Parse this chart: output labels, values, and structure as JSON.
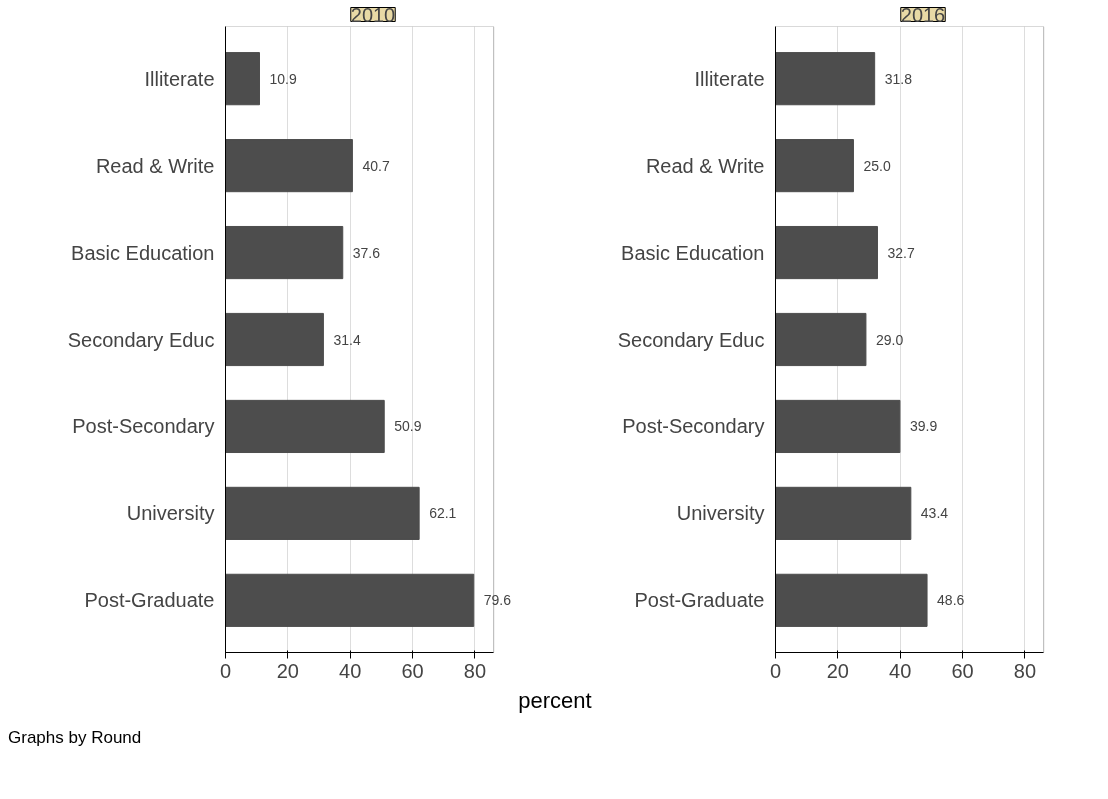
{
  "chart_data": [
    {
      "type": "bar",
      "title": "2010",
      "orientation": "horizontal",
      "categories": [
        "Illiterate",
        "Read & Write",
        "Basic Education",
        "Secondary Educ",
        "Post-Secondary",
        "University",
        "Post-Graduate"
      ],
      "values": [
        10.9,
        40.7,
        37.6,
        31.4,
        50.9,
        62.1,
        79.6
      ],
      "value_labels": [
        "10.9",
        "40.7",
        "37.6",
        "31.4",
        "50.9",
        "62.1",
        "79.6"
      ],
      "color": "#4d4d4d",
      "xlim": [
        0,
        86
      ],
      "xticks": [
        0,
        20,
        40,
        60,
        80
      ],
      "grid": "x",
      "xlabel": "percent",
      "annotations": [
        "Graphs by Round"
      ]
    },
    {
      "type": "bar",
      "title": "2016",
      "orientation": "horizontal",
      "categories": [
        "Illiterate",
        "Read & Write",
        "Basic Education",
        "Secondary Educ",
        "Post-Secondary",
        "University",
        "Post-Graduate"
      ],
      "values": [
        31.8,
        25.0,
        32.7,
        29.0,
        39.9,
        43.4,
        48.6
      ],
      "value_labels": [
        "31.8",
        "25.0",
        "32.7",
        "29.0",
        "39.9",
        "43.4",
        "48.6"
      ],
      "color": "#4d4d4d",
      "xlim": [
        0,
        86
      ],
      "xticks": [
        0,
        20,
        40,
        60,
        80
      ],
      "grid": "x"
    }
  ]
}
